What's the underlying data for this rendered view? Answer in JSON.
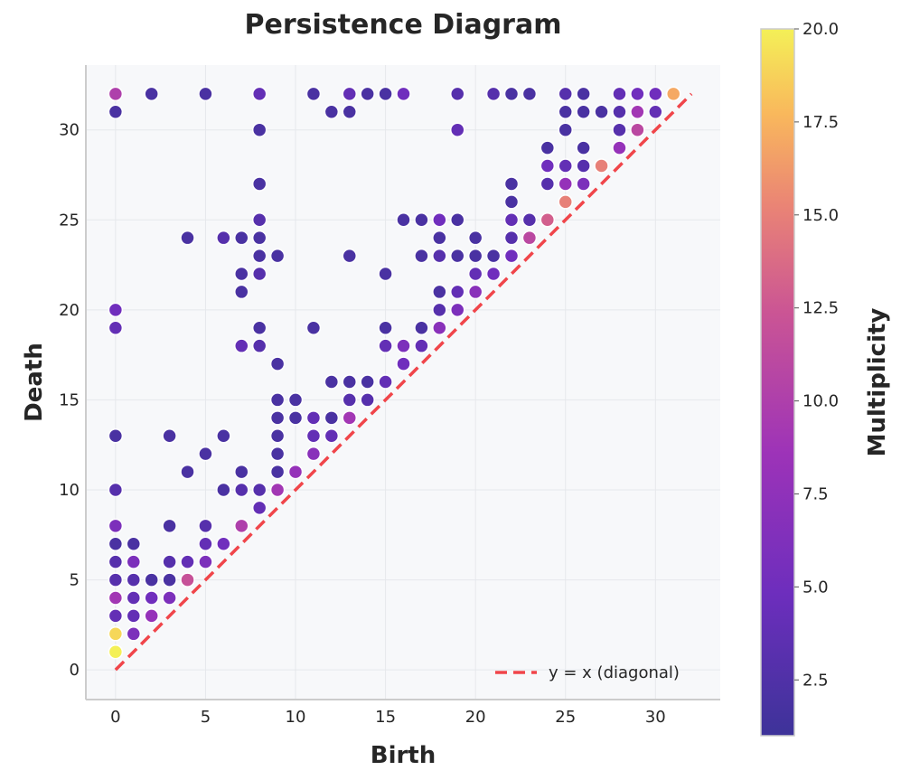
{
  "chart_data": {
    "type": "scatter",
    "title": "Persistence Diagram",
    "xlabel": "Birth",
    "ylabel": "Death",
    "xlim": [
      -1.6,
      33.6
    ],
    "ylim": [
      -1.6,
      33.6
    ],
    "xticks": [
      0,
      5,
      10,
      15,
      20,
      25,
      30
    ],
    "yticks": [
      0,
      5,
      10,
      15,
      20,
      25,
      30
    ],
    "colorbar": {
      "label": "Multiplicity",
      "range": [
        1,
        20
      ],
      "ticks": [
        "2.5",
        "5.0",
        "7.5",
        "10.0",
        "12.5",
        "15.0",
        "17.5",
        "20.0"
      ],
      "tick_values": [
        2.5,
        5,
        7.5,
        10,
        12.5,
        15,
        17.5,
        20
      ]
    },
    "legend": {
      "label": "y = x (diagonal)",
      "position": "lower-right"
    },
    "diagonal": {
      "from": 0,
      "to": 32,
      "color": "#f0454a"
    },
    "points": [
      [
        0,
        1,
        20
      ],
      [
        0,
        2,
        19
      ],
      [
        0,
        3,
        4
      ],
      [
        0,
        4,
        9
      ],
      [
        0,
        5,
        3
      ],
      [
        0,
        6,
        3
      ],
      [
        0,
        7,
        2
      ],
      [
        0,
        8,
        6
      ],
      [
        0,
        10,
        3
      ],
      [
        0,
        13,
        2
      ],
      [
        0,
        19,
        4
      ],
      [
        0,
        20,
        5
      ],
      [
        0,
        31,
        2
      ],
      [
        0,
        32,
        10
      ],
      [
        1,
        2,
        6
      ],
      [
        1,
        3,
        4
      ],
      [
        1,
        4,
        4
      ],
      [
        1,
        5,
        3
      ],
      [
        1,
        6,
        6
      ],
      [
        1,
        7,
        2
      ],
      [
        2,
        3,
        8
      ],
      [
        2,
        4,
        5
      ],
      [
        2,
        5,
        2
      ],
      [
        2,
        32,
        2
      ],
      [
        3,
        4,
        6
      ],
      [
        3,
        5,
        2
      ],
      [
        3,
        6,
        3
      ],
      [
        3,
        8,
        2
      ],
      [
        3,
        13,
        2
      ],
      [
        4,
        5,
        12
      ],
      [
        4,
        6,
        4
      ],
      [
        4,
        11,
        2
      ],
      [
        4,
        24,
        2
      ],
      [
        5,
        6,
        6
      ],
      [
        5,
        7,
        4
      ],
      [
        5,
        8,
        3
      ],
      [
        5,
        12,
        2
      ],
      [
        5,
        32,
        2
      ],
      [
        6,
        7,
        5
      ],
      [
        6,
        10,
        2
      ],
      [
        6,
        13,
        2
      ],
      [
        6,
        24,
        3
      ],
      [
        7,
        8,
        10
      ],
      [
        7,
        10,
        3
      ],
      [
        7,
        11,
        2
      ],
      [
        7,
        18,
        4
      ],
      [
        7,
        21,
        2
      ],
      [
        7,
        22,
        2
      ],
      [
        7,
        24,
        2
      ],
      [
        8,
        9,
        4
      ],
      [
        8,
        10,
        3
      ],
      [
        8,
        18,
        3
      ],
      [
        8,
        19,
        2
      ],
      [
        8,
        22,
        3
      ],
      [
        8,
        23,
        2
      ],
      [
        8,
        24,
        2
      ],
      [
        8,
        25,
        3
      ],
      [
        8,
        27,
        2
      ],
      [
        8,
        30,
        2
      ],
      [
        8,
        32,
        4
      ],
      [
        9,
        10,
        9
      ],
      [
        9,
        11,
        2
      ],
      [
        9,
        12,
        2
      ],
      [
        9,
        13,
        2
      ],
      [
        9,
        14,
        2
      ],
      [
        9,
        15,
        2
      ],
      [
        9,
        17,
        2
      ],
      [
        9,
        23,
        2
      ],
      [
        10,
        11,
        8
      ],
      [
        10,
        14,
        2
      ],
      [
        10,
        15,
        2
      ],
      [
        11,
        12,
        7
      ],
      [
        11,
        13,
        4
      ],
      [
        11,
        14,
        4
      ],
      [
        11,
        19,
        2
      ],
      [
        11,
        32,
        2
      ],
      [
        12,
        13,
        4
      ],
      [
        12,
        14,
        2
      ],
      [
        12,
        16,
        2
      ],
      [
        12,
        31,
        2
      ],
      [
        13,
        14,
        9
      ],
      [
        13,
        15,
        3
      ],
      [
        13,
        16,
        2
      ],
      [
        13,
        23,
        2
      ],
      [
        13,
        31,
        2
      ],
      [
        13,
        32,
        4
      ],
      [
        14,
        15,
        3
      ],
      [
        14,
        16,
        2
      ],
      [
        14,
        32,
        2
      ],
      [
        15,
        16,
        4
      ],
      [
        15,
        18,
        4
      ],
      [
        15,
        19,
        2
      ],
      [
        15,
        22,
        2
      ],
      [
        15,
        32,
        2
      ],
      [
        16,
        17,
        5
      ],
      [
        16,
        18,
        6
      ],
      [
        16,
        25,
        2
      ],
      [
        16,
        32,
        5
      ],
      [
        17,
        18,
        4
      ],
      [
        17,
        19,
        2
      ],
      [
        17,
        23,
        2
      ],
      [
        17,
        25,
        2
      ],
      [
        18,
        19,
        7
      ],
      [
        18,
        20,
        3
      ],
      [
        18,
        21,
        2
      ],
      [
        18,
        23,
        3
      ],
      [
        18,
        24,
        2
      ],
      [
        18,
        25,
        5
      ],
      [
        19,
        20,
        6
      ],
      [
        19,
        21,
        4
      ],
      [
        19,
        23,
        2
      ],
      [
        19,
        25,
        2
      ],
      [
        19,
        30,
        4
      ],
      [
        19,
        32,
        3
      ],
      [
        20,
        21,
        7
      ],
      [
        20,
        22,
        4
      ],
      [
        20,
        23,
        2
      ],
      [
        20,
        24,
        2
      ],
      [
        21,
        22,
        5
      ],
      [
        21,
        23,
        2
      ],
      [
        21,
        32,
        3
      ],
      [
        22,
        23,
        5
      ],
      [
        22,
        24,
        3
      ],
      [
        22,
        25,
        4
      ],
      [
        22,
        26,
        2
      ],
      [
        22,
        27,
        2
      ],
      [
        22,
        32,
        2
      ],
      [
        23,
        24,
        11
      ],
      [
        23,
        25,
        3
      ],
      [
        23,
        32,
        2
      ],
      [
        24,
        25,
        13
      ],
      [
        24,
        27,
        3
      ],
      [
        24,
        28,
        5
      ],
      [
        24,
        29,
        2
      ],
      [
        25,
        26,
        15
      ],
      [
        25,
        27,
        8
      ],
      [
        25,
        28,
        4
      ],
      [
        25,
        30,
        2
      ],
      [
        25,
        31,
        2
      ],
      [
        25,
        32,
        3
      ],
      [
        26,
        27,
        6
      ],
      [
        26,
        28,
        3
      ],
      [
        26,
        29,
        2
      ],
      [
        26,
        31,
        2
      ],
      [
        26,
        32,
        2
      ],
      [
        27,
        28,
        15
      ],
      [
        27,
        31,
        2
      ],
      [
        28,
        29,
        8
      ],
      [
        28,
        30,
        3
      ],
      [
        28,
        31,
        3
      ],
      [
        28,
        32,
        4
      ],
      [
        29,
        30,
        11
      ],
      [
        29,
        31,
        9
      ],
      [
        29,
        32,
        5
      ],
      [
        30,
        31,
        4
      ],
      [
        30,
        32,
        5
      ],
      [
        31,
        32,
        17
      ]
    ]
  }
}
